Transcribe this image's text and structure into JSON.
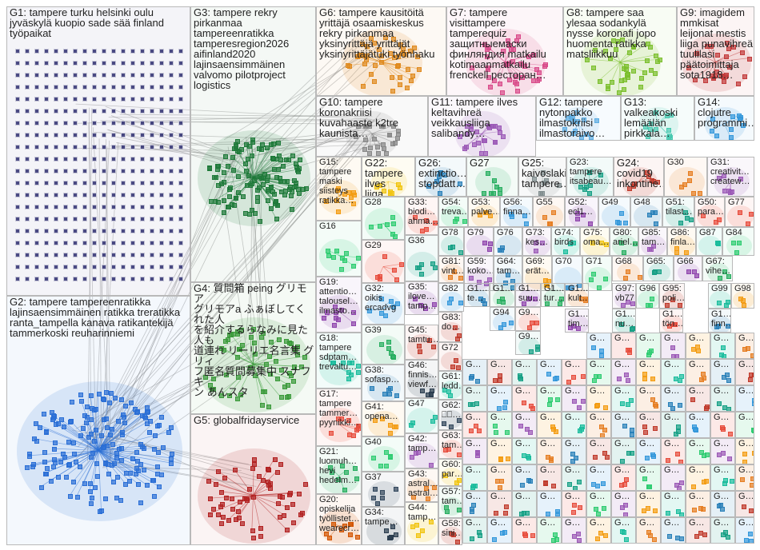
{
  "groups": [
    {
      "id": "G1",
      "label": "G1: tampere turku helsinki oulu\njyväskylä kuopio sade sää finland\ntyöpaikat",
      "color": "#2c2c6e"
    },
    {
      "id": "G2",
      "label": "G2: tampere tampereenratikka\nlajinsaensimmäinen ratikka treratikka\nranta_tampella kanava ratikantekijä\ntammerkoski reuharinniemi",
      "color": "#2b6fd6"
    },
    {
      "id": "G3",
      "label": "G3: tampere rekry\npirkanmaa\ntampereenratikka\ntamperesregion2026\naifinland2020\nlajinsaensimmäinen\nvalvomo pilotproject\nlogistics",
      "color": "#1f7a3a"
    },
    {
      "id": "G4",
      "label": "G4: 質問箱 peing グリモア\nグリモアa ふぁぼしてくれた人\nを紹介するらなみに見た人も\n道連れ リーリエ名言集 グリィ\nフ匿名質問募集中 スナフキ\nン あんスタ",
      "color": "#3a9a3a"
    },
    {
      "id": "G5",
      "label": "G5: globalfridayservice",
      "color": "#b22222"
    },
    {
      "id": "G6",
      "label": "G6: tampere kausitöitä\nyrittäjä osaamiskeskus\nrekry pirkanmaa\nyksinyrittäjä yrittäjät\nyksinyrittäjätuki työnhaku",
      "color": "#e08a1e"
    },
    {
      "id": "G7",
      "label": "G7: tampere\nvisittampere\ntamperequiz\nзащитныемаски\nфинляндия matkailu\nkotimaanmatkailu\nfrenckell ресторан…",
      "color": "#d94b8a"
    },
    {
      "id": "G8",
      "label": "G8: tampere saa\nylesaa sodankylä\nnysse koronafi jopo\nhuomenta ratikka\nmatsliikkuu",
      "color": "#7cbf2e"
    },
    {
      "id": "G9",
      "label": "G9: imagidem\nmmkisat\nleijonat mestis\nliiga punavihreä\ntuulilasi\npäätoimittaja\nsota1918…",
      "color": "#c23b3b"
    },
    {
      "id": "G10",
      "label": "G10: tampere\nkoronakriisi\nkuvahaaste k2tre\nkaunista…",
      "color": "#888888"
    },
    {
      "id": "G11",
      "label": "G11: tampere ilves\nkeltavihreä\nveikkausliiga\nsalibandy…",
      "color": "#9b59b6"
    },
    {
      "id": "G12",
      "label": "G12: tampere\nnytonpakko\nilmastokriisi\nilmastoraivo…",
      "color": "#5dade2"
    },
    {
      "id": "G13",
      "label": "G13:\nvalkeakoski\nlemäälän\npirkkala…",
      "color": "#48c9b0"
    },
    {
      "id": "G14",
      "label": "G14:\nclojutre\nprogrammi…",
      "color": "#3498db"
    },
    {
      "id": "G15",
      "label": "G15:\ntampere\nmaski\nsiisteys\nratikka…",
      "color": "#f39c12"
    },
    {
      "id": "G16",
      "label": "G16",
      "color": "#2ecc71"
    },
    {
      "id": "G17",
      "label": "G17:\ntampere\ntammer…\npyynikki…",
      "color": "#e74c3c"
    },
    {
      "id": "G18",
      "label": "G18:\ntampere\nsdptam…\ntrevaltu…",
      "color": "#1abc9c"
    },
    {
      "id": "G19",
      "label": "G19:\nattentio…\ntalousel…\nilmasto…",
      "color": "#8e44ad"
    },
    {
      "id": "G20",
      "label": "G20:\nopiskelija\ntyöllistet…\nwearecr…",
      "color": "#d35400"
    },
    {
      "id": "G21",
      "label": "G21:\nluomuh…\nhevi\nhedelm…",
      "color": "#27ae60"
    },
    {
      "id": "G22",
      "label": "G22:\ntampere\nilves liiga…",
      "color": "#f1c40f"
    },
    {
      "id": "G23",
      "label": "G23:\ntampere\nitsabeau…",
      "color": "#16a085"
    },
    {
      "id": "G24",
      "label": "G24:\ncovid19\ninkontine…",
      "color": "#c0392b"
    },
    {
      "id": "G25",
      "label": "G25:\nkaivoslaki\ntampere…",
      "color": "#7f8c8d"
    },
    {
      "id": "G26",
      "label": "G26:\nextinctio…\nstopdatt…",
      "color": "#2980b9"
    },
    {
      "id": "G27",
      "label": "G27",
      "color": "#27ae60"
    },
    {
      "id": "G28",
      "label": "G28",
      "color": "#2ecc71"
    },
    {
      "id": "G29",
      "label": "G29",
      "color": "#e74c3c"
    },
    {
      "id": "G30",
      "label": "G30",
      "color": "#e67e22"
    },
    {
      "id": "G31",
      "label": "G31:\ncreativit…\ncreatew…",
      "color": "#9b59b6"
    },
    {
      "id": "G32",
      "label": "G32:\noikis\nercadvg",
      "color": "#3498db"
    },
    {
      "id": "G33",
      "label": "G33:\nbiodi…\nahma…",
      "color": "#e74c3c"
    },
    {
      "id": "G34",
      "label": "G34:\ntampe…",
      "color": "#2c3e50"
    },
    {
      "id": "G35",
      "label": "G35:\nilove…\ntamp…",
      "color": "#8e44ad"
    },
    {
      "id": "G36",
      "label": "G36",
      "color": "#16a085"
    },
    {
      "id": "G37",
      "label": "G37",
      "color": "#34495e"
    },
    {
      "id": "G38",
      "label": "G38:\nsofasp…",
      "color": "#2980b9"
    },
    {
      "id": "G39",
      "label": "G39",
      "color": "#27ae60"
    },
    {
      "id": "G40",
      "label": "G40",
      "color": "#2ecc71"
    },
    {
      "id": "G41",
      "label": "G41:\nopena…",
      "color": "#f39c12"
    },
    {
      "id": "G42",
      "label": "G42:\ntamp…",
      "color": "#9b59b6"
    },
    {
      "id": "G43",
      "label": "G43:\nastral…\nastral…",
      "color": "#e67e22"
    },
    {
      "id": "G44",
      "label": "G44:\ntamp…",
      "color": "#f1c40f"
    },
    {
      "id": "G45",
      "label": "G45:\ntamtu…",
      "color": "#c0392b"
    },
    {
      "id": "G46",
      "label": "G46:\nfinnis…\nviewf…",
      "color": "#2c3e50"
    },
    {
      "id": "G47",
      "label": "G47",
      "color": "#1abc9c"
    },
    {
      "id": "G48",
      "label": "G48",
      "color": "#2980b9"
    },
    {
      "id": "G49",
      "label": "G49",
      "color": "#3498db"
    },
    {
      "id": "G50",
      "label": "G50:\npara…",
      "color": "#e74c3c"
    },
    {
      "id": "G51",
      "label": "G51:\ntilast…",
      "color": "#16a085"
    },
    {
      "id": "G52",
      "label": "G52:\necl1…",
      "color": "#8e44ad"
    },
    {
      "id": "G53",
      "label": "G53:\npalve…",
      "color": "#f39c12"
    },
    {
      "id": "G54",
      "label": "G54:\ntreva…",
      "color": "#2ecc71"
    },
    {
      "id": "G55",
      "label": "G55",
      "color": "#e67e22"
    },
    {
      "id": "G56",
      "label": "G56:\nfinna…",
      "color": "#3498db"
    },
    {
      "id": "G57",
      "label": "G57:\ntam…",
      "color": "#27ae60"
    },
    {
      "id": "G58",
      "label": "G58:\nsini…",
      "color": "#c0392b"
    },
    {
      "id": "G59",
      "label": "G59:\nkoko…",
      "color": "#9b59b6"
    },
    {
      "id": "G60",
      "label": "G60:\npar…",
      "color": "#f1c40f"
    },
    {
      "id": "G61",
      "label": "G61:\nledd…",
      "color": "#1abc9c"
    },
    {
      "id": "G62",
      "label": "G62:\n⎕⎕…",
      "color": "#34495e"
    },
    {
      "id": "G63",
      "label": "G63:\ntam…",
      "color": "#e74c3c"
    },
    {
      "id": "G64",
      "label": "G64:\ntam…",
      "color": "#2980b9"
    },
    {
      "id": "G65",
      "label": "G65:",
      "color": "#16a085"
    },
    {
      "id": "G66",
      "label": "G66",
      "color": "#8e44ad"
    },
    {
      "id": "G67",
      "label": "G67:\nvihe…",
      "color": "#27ae60"
    },
    {
      "id": "G68",
      "label": "G68",
      "color": "#e67e22"
    },
    {
      "id": "G69",
      "label": "G69:\nerät…",
      "color": "#f39c12"
    },
    {
      "id": "G70",
      "label": "G70",
      "color": "#3498db"
    },
    {
      "id": "G71",
      "label": "G71",
      "color": "#2ecc71"
    },
    {
      "id": "G72",
      "label": "G72",
      "color": "#c0392b"
    },
    {
      "id": "G73",
      "label": "G73:\nkes…",
      "color": "#9b59b6"
    },
    {
      "id": "G74",
      "label": "G74:\nbirds",
      "color": "#1abc9c"
    },
    {
      "id": "G75",
      "label": "G75:\noma…",
      "color": "#f1c40f"
    },
    {
      "id": "G76",
      "label": "G76",
      "color": "#2980b9"
    },
    {
      "id": "G77",
      "label": "G77",
      "color": "#e74c3c"
    },
    {
      "id": "G78",
      "label": "G78",
      "color": "#16a085"
    },
    {
      "id": "G79",
      "label": "G79",
      "color": "#8e44ad"
    },
    {
      "id": "G80",
      "label": "G80:\nariel…",
      "color": "#27ae60"
    },
    {
      "id": "G81",
      "label": "G81:\nvint…",
      "color": "#e67e22"
    },
    {
      "id": "G82",
      "label": "G82",
      "color": "#3498db"
    },
    {
      "id": "G83",
      "label": "G83:\ndo…",
      "color": "#c0392b"
    },
    {
      "id": "G84",
      "label": "G84",
      "color": "#2ecc71"
    },
    {
      "id": "G85",
      "label": "G85:\ntam…",
      "color": "#9b59b6"
    },
    {
      "id": "G86",
      "label": "G86:\nfinla…",
      "color": "#f39c12"
    },
    {
      "id": "G87",
      "label": "G87",
      "color": "#1abc9c"
    },
    {
      "id": "G88",
      "label": "G1…\nte…",
      "color": "#2980b9"
    },
    {
      "id": "G89",
      "label": "G9…",
      "color": "#e74c3c"
    },
    {
      "id": "G90",
      "label": "G9…",
      "color": "#16a085"
    },
    {
      "id": "G91",
      "label": "G1…\nsuu…",
      "color": "#8e44ad"
    },
    {
      "id": "G92",
      "label": "G1…\ntur…",
      "color": "#27ae60"
    },
    {
      "id": "G93",
      "label": "G1…\nkult…",
      "color": "#e67e22"
    },
    {
      "id": "G94",
      "label": "G94",
      "color": "#3498db"
    },
    {
      "id": "G95",
      "label": "G95:\npoli…",
      "color": "#c0392b"
    },
    {
      "id": "G96",
      "label": "G96",
      "color": "#2ecc71"
    },
    {
      "id": "G97",
      "label": "G97:\nvb77",
      "color": "#9b59b6"
    },
    {
      "id": "G98",
      "label": "G98",
      "color": "#f39c12"
    },
    {
      "id": "G99",
      "label": "G99",
      "color": "#1abc9c"
    },
    {
      "id": "Gx1",
      "label": "G1…\nfinn…",
      "color": "#2980b9"
    },
    {
      "id": "Gx2",
      "label": "G1…\ntön…",
      "color": "#e74c3c"
    },
    {
      "id": "Gx3",
      "label": "G1…\nnu…",
      "color": "#16a085"
    },
    {
      "id": "Gx4",
      "label": "G1…\ntim…",
      "color": "#8e44ad"
    },
    {
      "id": "Gx5",
      "label": "G1…",
      "color": "#27ae60"
    }
  ],
  "small_cell_label": "G…"
}
